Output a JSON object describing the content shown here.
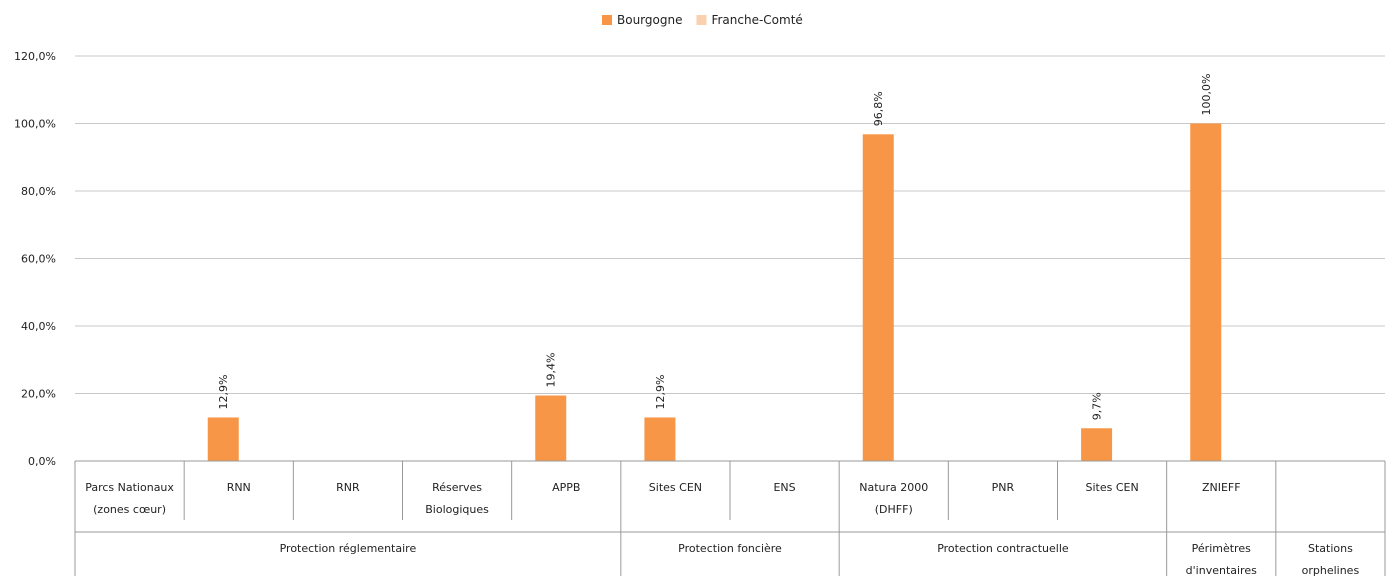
{
  "chart_data": {
    "type": "bar",
    "legend_position": "top-center",
    "grid": true,
    "ylim": [
      0,
      120
    ],
    "y_ticks": [
      "0,0%",
      "20,0%",
      "40,0%",
      "60,0%",
      "80,0%",
      "100,0%",
      "120,0%"
    ],
    "categories": [
      [
        "Parcs Nationaux",
        "(zones cœur)"
      ],
      [
        "RNN"
      ],
      [
        "RNR"
      ],
      [
        "Réserves",
        "Biologiques"
      ],
      [
        "APPB"
      ],
      [
        "Sites CEN"
      ],
      [
        "ENS"
      ],
      [
        "Natura 2000",
        "(DHFF)"
      ],
      [
        "PNR"
      ],
      [
        "Sites CEN"
      ],
      [
        "ZNIEFF"
      ],
      []
    ],
    "groups": [
      {
        "label": [
          "Protection réglementaire"
        ],
        "span": [
          0,
          4
        ]
      },
      {
        "label": [
          "Protection foncière"
        ],
        "span": [
          5,
          6
        ]
      },
      {
        "label": [
          "Protection contractuelle"
        ],
        "span": [
          7,
          9
        ]
      },
      {
        "label": [
          "Périmètres",
          "d'inventaires"
        ],
        "span": [
          10,
          10
        ]
      },
      {
        "label": [
          "Stations",
          "orphelines"
        ],
        "span": [
          11,
          11
        ]
      }
    ],
    "series": [
      {
        "name": "Bourgogne",
        "color": "#F79646",
        "values": [
          null,
          12.9,
          null,
          null,
          19.4,
          12.9,
          null,
          96.8,
          null,
          9.7,
          100.0,
          null
        ],
        "labels": [
          null,
          "12,9%",
          null,
          null,
          "19,4%",
          "12,9%",
          null,
          "96,8%",
          null,
          "9,7%",
          "100,0%",
          null
        ]
      },
      {
        "name": "Franche-Comté",
        "color": "#FAD1AE",
        "values": [
          null,
          null,
          null,
          null,
          null,
          null,
          null,
          null,
          null,
          null,
          null,
          null
        ],
        "labels": [
          null,
          null,
          null,
          null,
          null,
          null,
          null,
          null,
          null,
          null,
          null,
          null
        ]
      }
    ]
  }
}
